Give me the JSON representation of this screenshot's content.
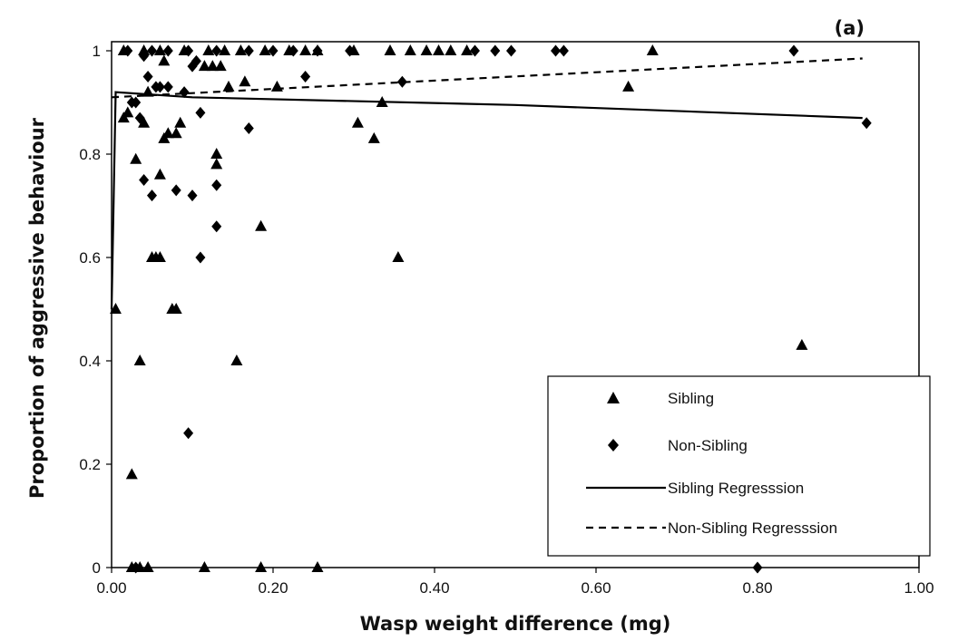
{
  "chart_data": {
    "type": "scatter",
    "panel_label": "(a)",
    "xlabel": "Wasp weight difference (mg)",
    "ylabel": "Proportion of aggressive behaviour",
    "xlim": [
      0,
      1
    ],
    "ylim": [
      0,
      1.05
    ],
    "x_ticks": [
      {
        "value": 0,
        "label": "0.00"
      },
      {
        "value": 0.2,
        "label": "0.20"
      },
      {
        "value": 0.4,
        "label": "0.40"
      },
      {
        "value": 0.6,
        "label": "0.60"
      },
      {
        "value": 0.8,
        "label": "0.80"
      },
      {
        "value": 1.0,
        "label": "1.00"
      }
    ],
    "y_ticks": [
      {
        "value": 0,
        "label": "0"
      },
      {
        "value": 0.2,
        "label": "0.2"
      },
      {
        "value": 0.4,
        "label": "0.4"
      },
      {
        "value": 0.6,
        "label": "0.6"
      },
      {
        "value": 0.8,
        "label": "0.8"
      },
      {
        "value": 1.0,
        "label": "1"
      }
    ],
    "grid": false,
    "legend_position": "bottom-right",
    "legend": [
      {
        "label": "Sibling",
        "kind": "triangle"
      },
      {
        "label": "Non-Sibling",
        "kind": "diamond"
      },
      {
        "label": "Sibling Regresssion",
        "kind": "solid-line"
      },
      {
        "label": "Non-Sibling Regresssion",
        "kind": "dashed-line"
      }
    ],
    "series": [
      {
        "name": "Sibling",
        "marker": "triangle",
        "points": [
          [
            0.005,
            0.5
          ],
          [
            0.015,
            0.87
          ],
          [
            0.02,
            0.88
          ],
          [
            0.025,
            0.18
          ],
          [
            0.03,
            0.79
          ],
          [
            0.035,
            0.4
          ],
          [
            0.04,
            0.86
          ],
          [
            0.045,
            0.92
          ],
          [
            0.05,
            0.6
          ],
          [
            0.055,
            0.6
          ],
          [
            0.06,
            0.6
          ],
          [
            0.06,
            0.76
          ],
          [
            0.065,
            0.83
          ],
          [
            0.065,
            0.98
          ],
          [
            0.07,
            0.84
          ],
          [
            0.075,
            0.5
          ],
          [
            0.08,
            0.84
          ],
          [
            0.08,
            0.5
          ],
          [
            0.085,
            0.86
          ],
          [
            0.115,
            0.97
          ],
          [
            0.125,
            0.97
          ],
          [
            0.13,
            0.78
          ],
          [
            0.13,
            0.8
          ],
          [
            0.135,
            0.97
          ],
          [
            0.145,
            0.93
          ],
          [
            0.155,
            0.4
          ],
          [
            0.165,
            0.94
          ],
          [
            0.185,
            0.66
          ],
          [
            0.205,
            0.93
          ],
          [
            0.305,
            0.86
          ],
          [
            0.325,
            0.83
          ],
          [
            0.335,
            0.9
          ],
          [
            0.355,
            0.6
          ],
          [
            0.64,
            0.93
          ],
          [
            0.855,
            0.43
          ],
          [
            0.015,
            1.0
          ],
          [
            0.04,
            1.0
          ],
          [
            0.06,
            1.0
          ],
          [
            0.09,
            1.0
          ],
          [
            0.12,
            1.0
          ],
          [
            0.14,
            1.0
          ],
          [
            0.16,
            1.0
          ],
          [
            0.19,
            1.0
          ],
          [
            0.22,
            1.0
          ],
          [
            0.24,
            1.0
          ],
          [
            0.255,
            1.0
          ],
          [
            0.3,
            1.0
          ],
          [
            0.345,
            1.0
          ],
          [
            0.37,
            1.0
          ],
          [
            0.39,
            1.0
          ],
          [
            0.405,
            1.0
          ],
          [
            0.42,
            1.0
          ],
          [
            0.44,
            1.0
          ],
          [
            0.67,
            1.0
          ],
          [
            0.025,
            0.0
          ],
          [
            0.035,
            0.0
          ],
          [
            0.045,
            0.0
          ],
          [
            0.115,
            0.0
          ],
          [
            0.185,
            0.0
          ],
          [
            0.255,
            0.0
          ]
        ]
      },
      {
        "name": "Non-Sibling",
        "marker": "diamond",
        "points": [
          [
            0.025,
            0.9
          ],
          [
            0.03,
            0.9
          ],
          [
            0.035,
            0.87
          ],
          [
            0.04,
            0.99
          ],
          [
            0.04,
            0.75
          ],
          [
            0.045,
            0.95
          ],
          [
            0.05,
            0.72
          ],
          [
            0.055,
            0.93
          ],
          [
            0.06,
            0.93
          ],
          [
            0.07,
            0.93
          ],
          [
            0.08,
            0.73
          ],
          [
            0.09,
            0.92
          ],
          [
            0.095,
            0.26
          ],
          [
            0.1,
            0.72
          ],
          [
            0.1,
            0.97
          ],
          [
            0.105,
            0.98
          ],
          [
            0.11,
            0.6
          ],
          [
            0.11,
            0.88
          ],
          [
            0.13,
            0.74
          ],
          [
            0.13,
            0.66
          ],
          [
            0.17,
            0.85
          ],
          [
            0.24,
            0.95
          ],
          [
            0.36,
            0.94
          ],
          [
            0.935,
            0.86
          ],
          [
            0.02,
            1.0
          ],
          [
            0.05,
            1.0
          ],
          [
            0.07,
            1.0
          ],
          [
            0.095,
            1.0
          ],
          [
            0.13,
            1.0
          ],
          [
            0.17,
            1.0
          ],
          [
            0.2,
            1.0
          ],
          [
            0.225,
            1.0
          ],
          [
            0.255,
            1.0
          ],
          [
            0.295,
            1.0
          ],
          [
            0.45,
            1.0
          ],
          [
            0.475,
            1.0
          ],
          [
            0.495,
            1.0
          ],
          [
            0.55,
            1.0
          ],
          [
            0.56,
            1.0
          ],
          [
            0.845,
            1.0
          ],
          [
            0.03,
            0.0
          ],
          [
            0.8,
            0.0
          ]
        ]
      },
      {
        "name": "Sibling Regresssion",
        "type": "line",
        "style": "solid",
        "points": [
          [
            0,
            0.5
          ],
          [
            0.005,
            0.92
          ],
          [
            0.1,
            0.91
          ],
          [
            0.5,
            0.895
          ],
          [
            0.93,
            0.87
          ]
        ]
      },
      {
        "name": "Non-Sibling Regresssion",
        "type": "line",
        "style": "dashed",
        "points": [
          [
            0,
            0.91
          ],
          [
            0.93,
            0.985
          ]
        ]
      }
    ]
  }
}
